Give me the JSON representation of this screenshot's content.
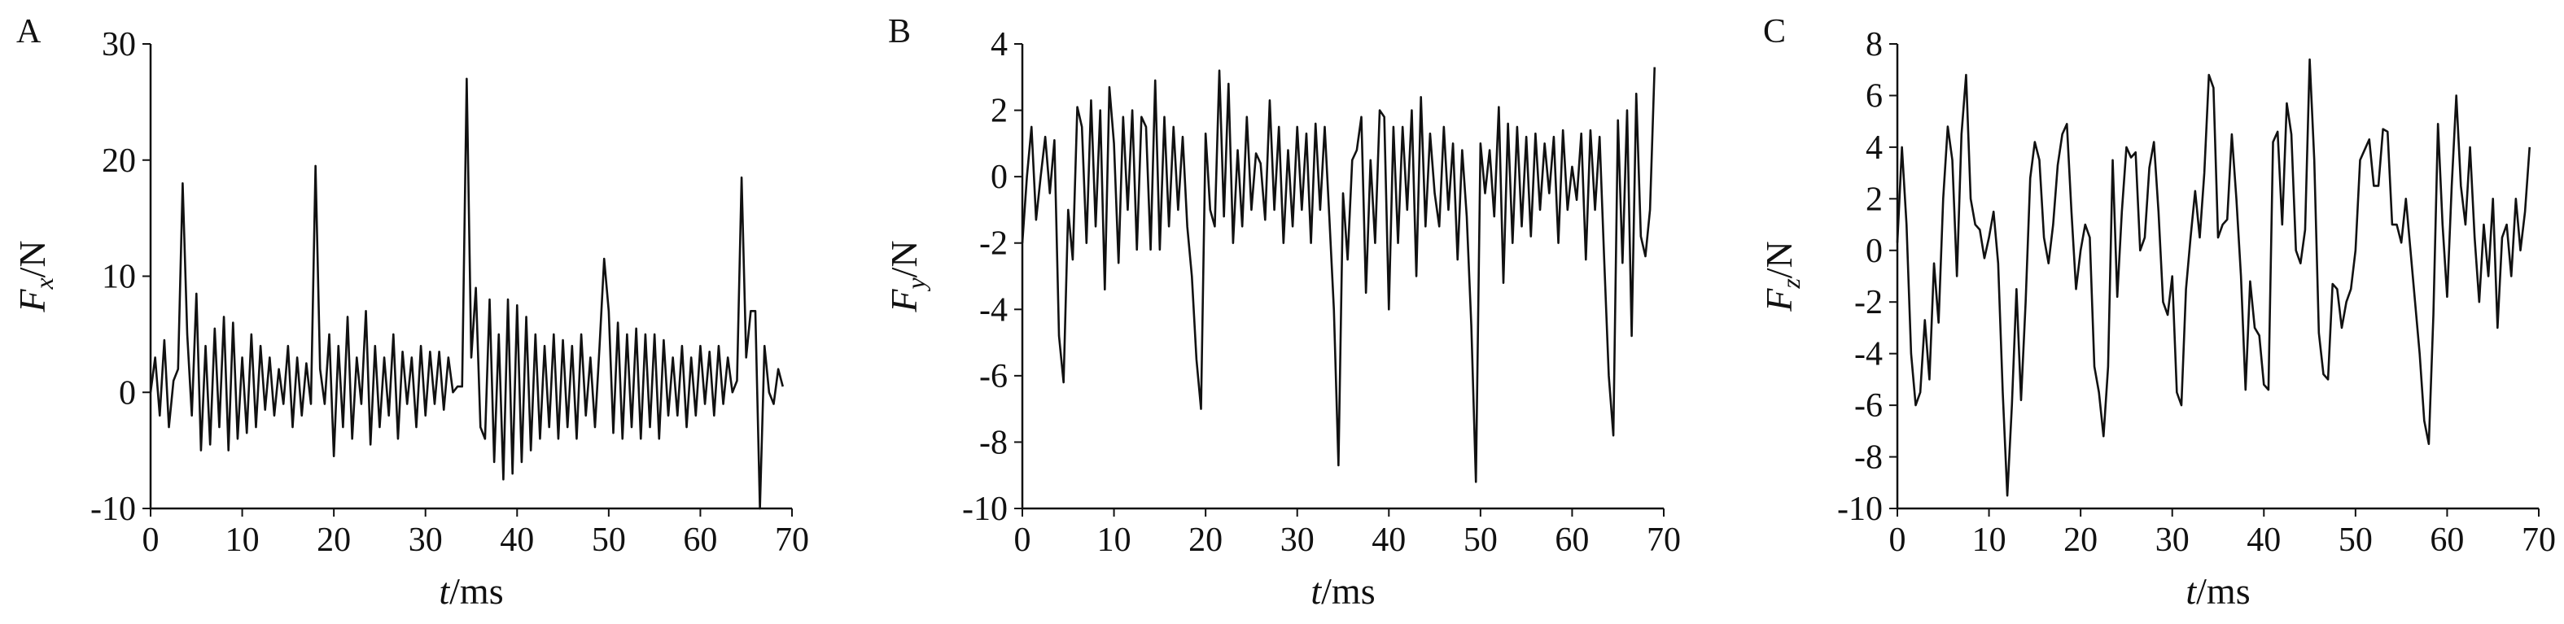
{
  "chart_data": [
    {
      "type": "line",
      "label": "A",
      "y_label": {
        "symbol": "F",
        "subscript": "x",
        "unit": "/N"
      },
      "x_label": {
        "symbol": "t",
        "unit": "/ms"
      },
      "xlim": [
        0,
        70
      ],
      "xticks": [
        0,
        10,
        20,
        30,
        40,
        50,
        60,
        70
      ],
      "ylim": [
        -10,
        30
      ],
      "yticks": [
        -10,
        0,
        10,
        20,
        30
      ],
      "color": "#111111",
      "x": [
        0,
        0.5,
        1,
        1.5,
        2,
        2.5,
        3,
        3.5,
        4,
        4.5,
        5,
        5.5,
        6,
        6.5,
        7,
        7.5,
        8,
        8.5,
        9,
        9.5,
        10,
        10.5,
        11,
        11.5,
        12,
        12.5,
        13,
        13.5,
        14,
        14.5,
        15,
        15.5,
        16,
        16.5,
        17,
        17.5,
        18,
        18.5,
        19,
        19.5,
        20,
        20.5,
        21,
        21.5,
        22,
        22.5,
        23,
        23.5,
        24,
        24.5,
        25,
        25.5,
        26,
        26.5,
        27,
        27.5,
        28,
        28.5,
        29,
        29.5,
        30,
        30.5,
        31,
        31.5,
        32,
        32.5,
        33,
        33.5,
        34,
        34.5,
        35,
        35.5,
        36,
        36.5,
        37,
        37.5,
        38,
        38.5,
        39,
        39.5,
        40,
        40.5,
        41,
        41.5,
        42,
        42.5,
        43,
        43.5,
        44,
        44.5,
        45,
        45.5,
        46,
        46.5,
        47,
        47.5,
        48,
        48.5,
        49,
        49.5,
        50,
        50.5,
        51,
        51.5,
        52,
        52.5,
        53,
        53.5,
        54,
        54.5,
        55,
        55.5,
        56,
        56.5,
        57,
        57.5,
        58,
        58.5,
        59,
        59.5,
        60,
        60.5,
        61,
        61.5,
        62,
        62.5,
        63,
        63.5,
        64,
        64.5,
        65,
        65.5,
        66,
        66.5,
        67,
        67.5,
        68,
        68.5,
        69
      ],
      "values": [
        0,
        3,
        -2,
        4.5,
        -3,
        1,
        2,
        18,
        5,
        -2,
        8.5,
        -5,
        4,
        -4.5,
        5.5,
        -3,
        6.5,
        -5,
        6,
        -4,
        3,
        -3.5,
        5,
        -3,
        4,
        -1.5,
        3,
        -2,
        2,
        -1,
        4,
        -3,
        3,
        -2,
        2.5,
        -1,
        19.5,
        2,
        -1,
        5,
        -5.5,
        4,
        -3,
        6.5,
        -4,
        3,
        -1,
        7,
        -4.5,
        4,
        -3,
        3,
        -2,
        5,
        -4,
        3.5,
        -1,
        3,
        -3,
        4,
        -2,
        3.5,
        -1,
        3.5,
        -1.5,
        3,
        0,
        0.5,
        0.5,
        27,
        3,
        9,
        -3,
        -4,
        8,
        -6,
        5,
        -7.5,
        8,
        -7,
        7.5,
        -6,
        6.5,
        -5,
        5,
        -4,
        4,
        -3,
        5,
        -4,
        4.5,
        -3,
        4,
        -4,
        5,
        -2,
        3,
        -3,
        4,
        11.5,
        7,
        -3.5,
        6,
        -4,
        5,
        -3,
        5.5,
        -4,
        5,
        -3,
        5,
        -4,
        4.5,
        -2,
        3,
        -2,
        4,
        -3,
        3,
        -2,
        4,
        -1,
        3.5,
        -2,
        4,
        -1,
        3,
        0,
        1,
        18.5,
        3,
        7,
        7,
        -10,
        4,
        0,
        -1,
        2,
        0.5
      ]
    },
    {
      "type": "line",
      "label": "B",
      "y_label": {
        "symbol": "F",
        "subscript": "y",
        "unit": "/N"
      },
      "x_label": {
        "symbol": "t",
        "unit": "/ms"
      },
      "xlim": [
        0,
        70
      ],
      "xticks": [
        0,
        10,
        20,
        30,
        40,
        50,
        60,
        70
      ],
      "ylim": [
        -10,
        4
      ],
      "yticks": [
        -10,
        -8,
        -6,
        -4,
        -2,
        0,
        2,
        4
      ],
      "color": "#111111",
      "x": [
        0,
        0.5,
        1,
        1.5,
        2,
        2.5,
        3,
        3.5,
        4,
        4.5,
        5,
        5.5,
        6,
        6.5,
        7,
        7.5,
        8,
        8.5,
        9,
        9.5,
        10,
        10.5,
        11,
        11.5,
        12,
        12.5,
        13,
        13.5,
        14,
        14.5,
        15,
        15.5,
        16,
        16.5,
        17,
        17.5,
        18,
        18.5,
        19,
        19.5,
        20,
        20.5,
        21,
        21.5,
        22,
        22.5,
        23,
        23.5,
        24,
        24.5,
        25,
        25.5,
        26,
        26.5,
        27,
        27.5,
        28,
        28.5,
        29,
        29.5,
        30,
        30.5,
        31,
        31.5,
        32,
        32.5,
        33,
        33.5,
        34,
        34.5,
        35,
        35.5,
        36,
        36.5,
        37,
        37.5,
        38,
        38.5,
        39,
        39.5,
        40,
        40.5,
        41,
        41.5,
        42,
        42.5,
        43,
        43.5,
        44,
        44.5,
        45,
        45.5,
        46,
        46.5,
        47,
        47.5,
        48,
        48.5,
        49,
        49.5,
        50,
        50.5,
        51,
        51.5,
        52,
        52.5,
        53,
        53.5,
        54,
        54.5,
        55,
        55.5,
        56,
        56.5,
        57,
        57.5,
        58,
        58.5,
        59,
        59.5,
        60,
        60.5,
        61,
        61.5,
        62,
        62.5,
        63,
        63.5,
        64,
        64.5,
        65,
        65.5,
        66,
        66.5,
        67,
        67.5,
        68,
        68.5,
        69
      ],
      "values": [
        -2,
        0,
        1.5,
        -1.3,
        0,
        1.2,
        -0.5,
        1.1,
        -4.8,
        -6.2,
        -1,
        -2.5,
        2.1,
        1.5,
        -2,
        2.3,
        -1.5,
        2,
        -3.4,
        2.7,
        1,
        -2.6,
        1.8,
        -1,
        2,
        -2.2,
        1.8,
        1.5,
        -2.2,
        2.9,
        -2.2,
        1.8,
        -1.5,
        1.5,
        -1,
        1.2,
        -1.5,
        -3,
        -5.5,
        -7,
        1.3,
        -1,
        -1.5,
        3.2,
        -1.2,
        2.8,
        -2,
        0.8,
        -1.5,
        1.8,
        -1,
        0.7,
        0.4,
        -1.3,
        2.3,
        -1,
        1.5,
        -2,
        0.8,
        -1.5,
        1.5,
        -1,
        1.3,
        -2,
        1.6,
        -1,
        1.5,
        -1.2,
        -4,
        -8.7,
        -0.5,
        -2.5,
        0.5,
        0.8,
        1.8,
        -3.5,
        0.5,
        -2,
        2,
        1.8,
        -4,
        1.5,
        -2,
        1.5,
        -1,
        2,
        -3,
        2.4,
        -1.5,
        1.3,
        -0.5,
        -1.5,
        1.5,
        -1,
        1,
        -2.5,
        0.8,
        -1.2,
        -4.5,
        -9.2,
        1,
        -0.5,
        0.8,
        -1.2,
        2.1,
        -3.2,
        1.6,
        -2,
        1.5,
        -1.5,
        1.2,
        -1.8,
        1.3,
        -1,
        1,
        -0.5,
        1.2,
        -2,
        1.4,
        -1,
        0.3,
        -0.7,
        1.3,
        -2.5,
        1.4,
        -1,
        1.2,
        -2.5,
        -6,
        -7.8,
        1.7,
        -2.6,
        2,
        -4.8,
        2.5,
        -1.8,
        -2.4,
        -1,
        3.3
      ]
    },
    {
      "type": "line",
      "label": "C",
      "y_label": {
        "symbol": "F",
        "subscript": "z",
        "unit": "/N"
      },
      "x_label": {
        "symbol": "t",
        "unit": "/ms"
      },
      "xlim": [
        0,
        70
      ],
      "xticks": [
        0,
        10,
        20,
        30,
        40,
        50,
        60,
        70
      ],
      "ylim": [
        -10,
        8
      ],
      "yticks": [
        -10,
        -8,
        -6,
        -4,
        -2,
        0,
        2,
        4,
        6,
        8
      ],
      "color": "#111111",
      "x": [
        0,
        0.5,
        1,
        1.5,
        2,
        2.5,
        3,
        3.5,
        4,
        4.5,
        5,
        5.5,
        6,
        6.5,
        7,
        7.5,
        8,
        8.5,
        9,
        9.5,
        10,
        10.5,
        11,
        11.5,
        12,
        12.5,
        13,
        13.5,
        14,
        14.5,
        15,
        15.5,
        16,
        16.5,
        17,
        17.5,
        18,
        18.5,
        19,
        19.5,
        20,
        20.5,
        21,
        21.5,
        22,
        22.5,
        23,
        23.5,
        24,
        24.5,
        25,
        25.5,
        26,
        26.5,
        27,
        27.5,
        28,
        28.5,
        29,
        29.5,
        30,
        30.5,
        31,
        31.5,
        32,
        32.5,
        33,
        33.5,
        34,
        34.5,
        35,
        35.5,
        36,
        36.5,
        37,
        37.5,
        38,
        38.5,
        39,
        39.5,
        40,
        40.5,
        41,
        41.5,
        42,
        42.5,
        43,
        43.5,
        44,
        44.5,
        45,
        45.5,
        46,
        46.5,
        47,
        47.5,
        48,
        48.5,
        49,
        49.5,
        50,
        50.5,
        51,
        51.5,
        52,
        52.5,
        53,
        53.5,
        54,
        54.5,
        55,
        55.5,
        56,
        56.5,
        57,
        57.5,
        58,
        58.5,
        59,
        59.5,
        60,
        60.5,
        61,
        61.5,
        62,
        62.5,
        63,
        63.5,
        64,
        64.5,
        65,
        65.5,
        66,
        66.5,
        67,
        67.5,
        68,
        68.5,
        69
      ],
      "values": [
        0.3,
        4,
        1,
        -4,
        -6,
        -5.5,
        -2.7,
        -5,
        -0.5,
        -2.8,
        2,
        4.8,
        3.5,
        -1,
        4.5,
        6.8,
        2,
        1,
        0.8,
        -0.3,
        0.5,
        1.5,
        -0.5,
        -5.5,
        -9.5,
        -6,
        -1.5,
        -5.8,
        -2,
        2.8,
        4.2,
        3.5,
        0.5,
        -0.5,
        1,
        3.3,
        4.5,
        4.9,
        1.5,
        -1.5,
        0,
        1,
        0.5,
        -4.5,
        -5.5,
        -7.2,
        -4.5,
        3.5,
        -1.8,
        1.5,
        4,
        3.6,
        3.8,
        0,
        0.5,
        3.2,
        4.2,
        1.5,
        -2,
        -2.5,
        -1,
        -5.5,
        -6,
        -1.5,
        0.5,
        2.3,
        0.5,
        3,
        6.8,
        6.3,
        0.5,
        1,
        1.2,
        4.5,
        2,
        -1,
        -5.4,
        -1.2,
        -3,
        -3.3,
        -5.2,
        -5.4,
        4.2,
        4.6,
        1,
        5.7,
        4.5,
        0,
        -0.5,
        0.8,
        7.4,
        3.5,
        -3.2,
        -4.8,
        -5,
        -1.3,
        -1.5,
        -3,
        -2,
        -1.5,
        0,
        3.5,
        3.9,
        4.3,
        2.5,
        2.5,
        4.7,
        4.6,
        1,
        1,
        0.3,
        2,
        0,
        -2,
        -4,
        -6.6,
        -7.5,
        -2.5,
        4.9,
        1,
        -1.8,
        2.5,
        6,
        2.5,
        1,
        4,
        0.5,
        -2,
        1,
        -1,
        2,
        -3,
        0.5,
        1,
        -1,
        2,
        0,
        1.5,
        4
      ]
    }
  ]
}
